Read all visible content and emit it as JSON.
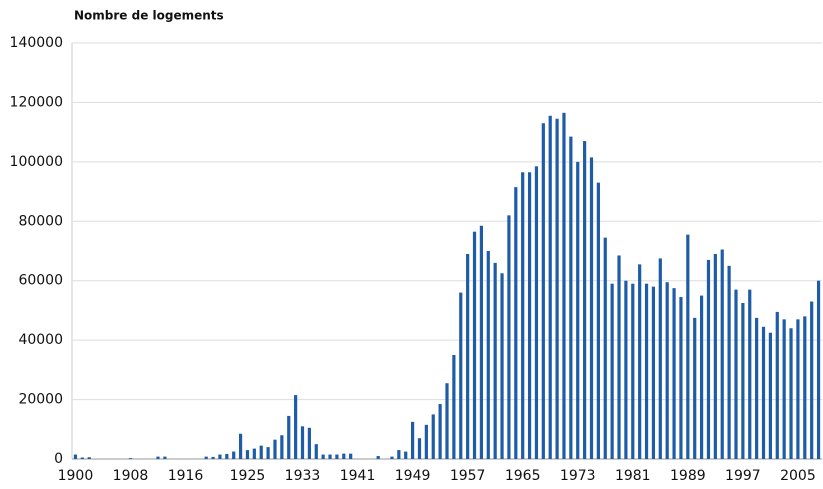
{
  "chart_data": {
    "type": "bar",
    "title": "Nombre de logements",
    "categories": [
      "1900",
      null,
      null,
      null,
      null,
      null,
      null,
      null,
      "1908",
      null,
      null,
      null,
      null,
      null,
      null,
      null,
      "1916",
      null,
      null,
      null,
      null,
      null,
      null,
      null,
      null,
      "1925",
      null,
      null,
      null,
      null,
      null,
      null,
      null,
      "1933",
      null,
      null,
      null,
      null,
      null,
      null,
      null,
      "1941",
      null,
      null,
      null,
      null,
      null,
      null,
      null,
      "1949",
      null,
      null,
      null,
      null,
      null,
      null,
      null,
      "1957",
      null,
      null,
      null,
      null,
      null,
      null,
      null,
      "1965",
      null,
      null,
      null,
      null,
      null,
      null,
      null,
      "1973",
      null,
      null,
      null,
      null,
      null,
      null,
      null,
      "1981",
      null,
      null,
      null,
      null,
      null,
      null,
      null,
      "1989",
      null,
      null,
      null,
      null,
      null,
      null,
      null,
      "1997",
      null,
      null,
      null,
      null,
      null,
      null,
      null,
      "2005",
      null,
      null,
      null
    ],
    "values": [
      1500,
      500,
      600,
      0,
      0,
      0,
      0,
      0,
      300,
      0,
      0,
      0,
      800,
      800,
      0,
      0,
      0,
      0,
      0,
      800,
      700,
      1500,
      1700,
      2500,
      8500,
      3000,
      3500,
      4500,
      4000,
      6500,
      8000,
      14500,
      21500,
      11000,
      10500,
      5000,
      1500,
      1500,
      1500,
      1800,
      1800,
      0,
      0,
      0,
      1000,
      0,
      800,
      3000,
      2500,
      12500,
      7000,
      11500,
      15000,
      18500,
      25500,
      35000,
      56000,
      69000,
      76500,
      78500,
      70000,
      66000,
      62500,
      82000,
      91500,
      96500,
      96500,
      98500,
      113000,
      115500,
      114500,
      116500,
      108500,
      100000,
      107000,
      101500,
      93000,
      74500,
      59000,
      68500,
      60000,
      59000,
      65500,
      59000,
      58000,
      67500,
      59500,
      57500,
      54500,
      75500,
      47500,
      55000,
      67000,
      69000,
      70500,
      65000,
      57000,
      52500,
      57000,
      47500,
      44500,
      42500,
      49500,
      47000,
      44000,
      47000,
      48000,
      53000,
      60000
    ],
    "color": "#1f5ca8",
    "ylim": [
      0,
      140000
    ],
    "yticks": [
      0,
      20000,
      40000,
      60000,
      80000,
      100000,
      120000,
      140000
    ],
    "grid": true
  }
}
